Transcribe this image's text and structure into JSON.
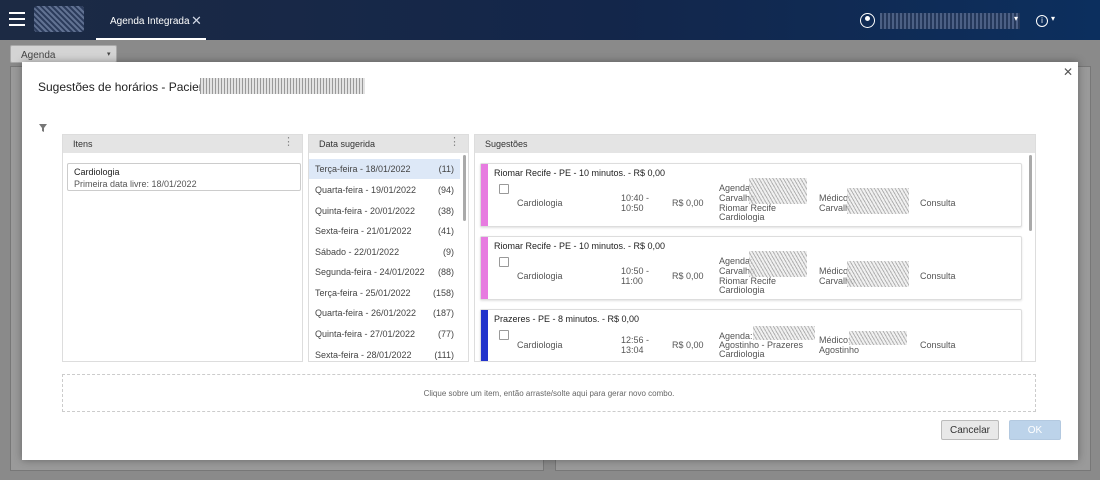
{
  "topbar": {
    "tab_label": "Agenda Integrada",
    "close_glyph": "✕",
    "info_glyph": "i",
    "caret_glyph": "▾"
  },
  "background": {
    "agenda_dropdown": "Agenda",
    "caret_glyph": "▾"
  },
  "modal": {
    "title": "Sugestões de horários - Paciente:",
    "close_glyph": "✕",
    "panels": {
      "items_title": "Itens",
      "dates_title": "Data sugerida",
      "suggestions_title": "Sugestões",
      "menu_glyph": "⋮"
    },
    "item": {
      "name": "Cardiologia",
      "subtitle": "Primeira data livre: 18/01/2022"
    },
    "dates": [
      {
        "label": "Terça-feira - 18/01/2022",
        "count": "(11)"
      },
      {
        "label": "Quarta-feira - 19/01/2022",
        "count": "(94)"
      },
      {
        "label": "Quinta-feira - 20/01/2022",
        "count": "(38)"
      },
      {
        "label": "Sexta-feira - 21/01/2022",
        "count": "(41)"
      },
      {
        "label": "Sábado - 22/01/2022",
        "count": "(9)"
      },
      {
        "label": "Segunda-feira - 24/01/2022",
        "count": "(88)"
      },
      {
        "label": "Terça-feira - 25/01/2022",
        "count": "(158)"
      },
      {
        "label": "Quarta-feira - 26/01/2022",
        "count": "(187)"
      },
      {
        "label": "Quinta-feira - 27/01/2022",
        "count": "(77)"
      },
      {
        "label": "Sexta-feira - 28/01/2022",
        "count": "(111)"
      }
    ],
    "suggestions": [
      {
        "title": "Riomar Recife - PE - 10 minutos. - R$ 0,00",
        "color": "#e77be0",
        "specialty": "Cardiologia",
        "time_start": "10:40 -",
        "time_end": "10:50",
        "price": "R$ 0,00",
        "agenda_line1": "Agenda:",
        "agenda_line2": "Carvalho",
        "agenda_line3": "Riomar Recife",
        "agenda_line4": "Cardiologia",
        "medico_line1": "Médico:",
        "medico_line2": "Carvalh",
        "type": "Consulta"
      },
      {
        "title": "Riomar Recife - PE - 10 minutos. - R$ 0,00",
        "color": "#e77be0",
        "specialty": "Cardiologia",
        "time_start": "10:50 -",
        "time_end": "11:00",
        "price": "R$ 0,00",
        "agenda_line1": "Agenda:",
        "agenda_line2": "Carvalho",
        "agenda_line3": "Riomar Recife",
        "agenda_line4": "Cardiologia",
        "medico_line1": "Médico:",
        "medico_line2": "Carvalho",
        "type": "Consulta"
      },
      {
        "title": "Prazeres - PE - 8 minutos. - R$ 0,00",
        "color": "#2233cc",
        "specialty": "Cardiologia",
        "time_start": "12:56 -",
        "time_end": "13:04",
        "price": "R$ 0,00",
        "agenda_line1": "Agenda:",
        "agenda_line2": "Agostinho - Prazeres",
        "agenda_line3": "Cardiologia",
        "agenda_line4": "",
        "medico_line1": "Médico:",
        "medico_line2": "Agostinho",
        "type": "Consulta"
      }
    ],
    "dropzone_text": "Clique sobre um item, então arraste/solte aqui para gerar novo combo.",
    "cancel_label": "Cancelar",
    "ok_label": "OK"
  }
}
